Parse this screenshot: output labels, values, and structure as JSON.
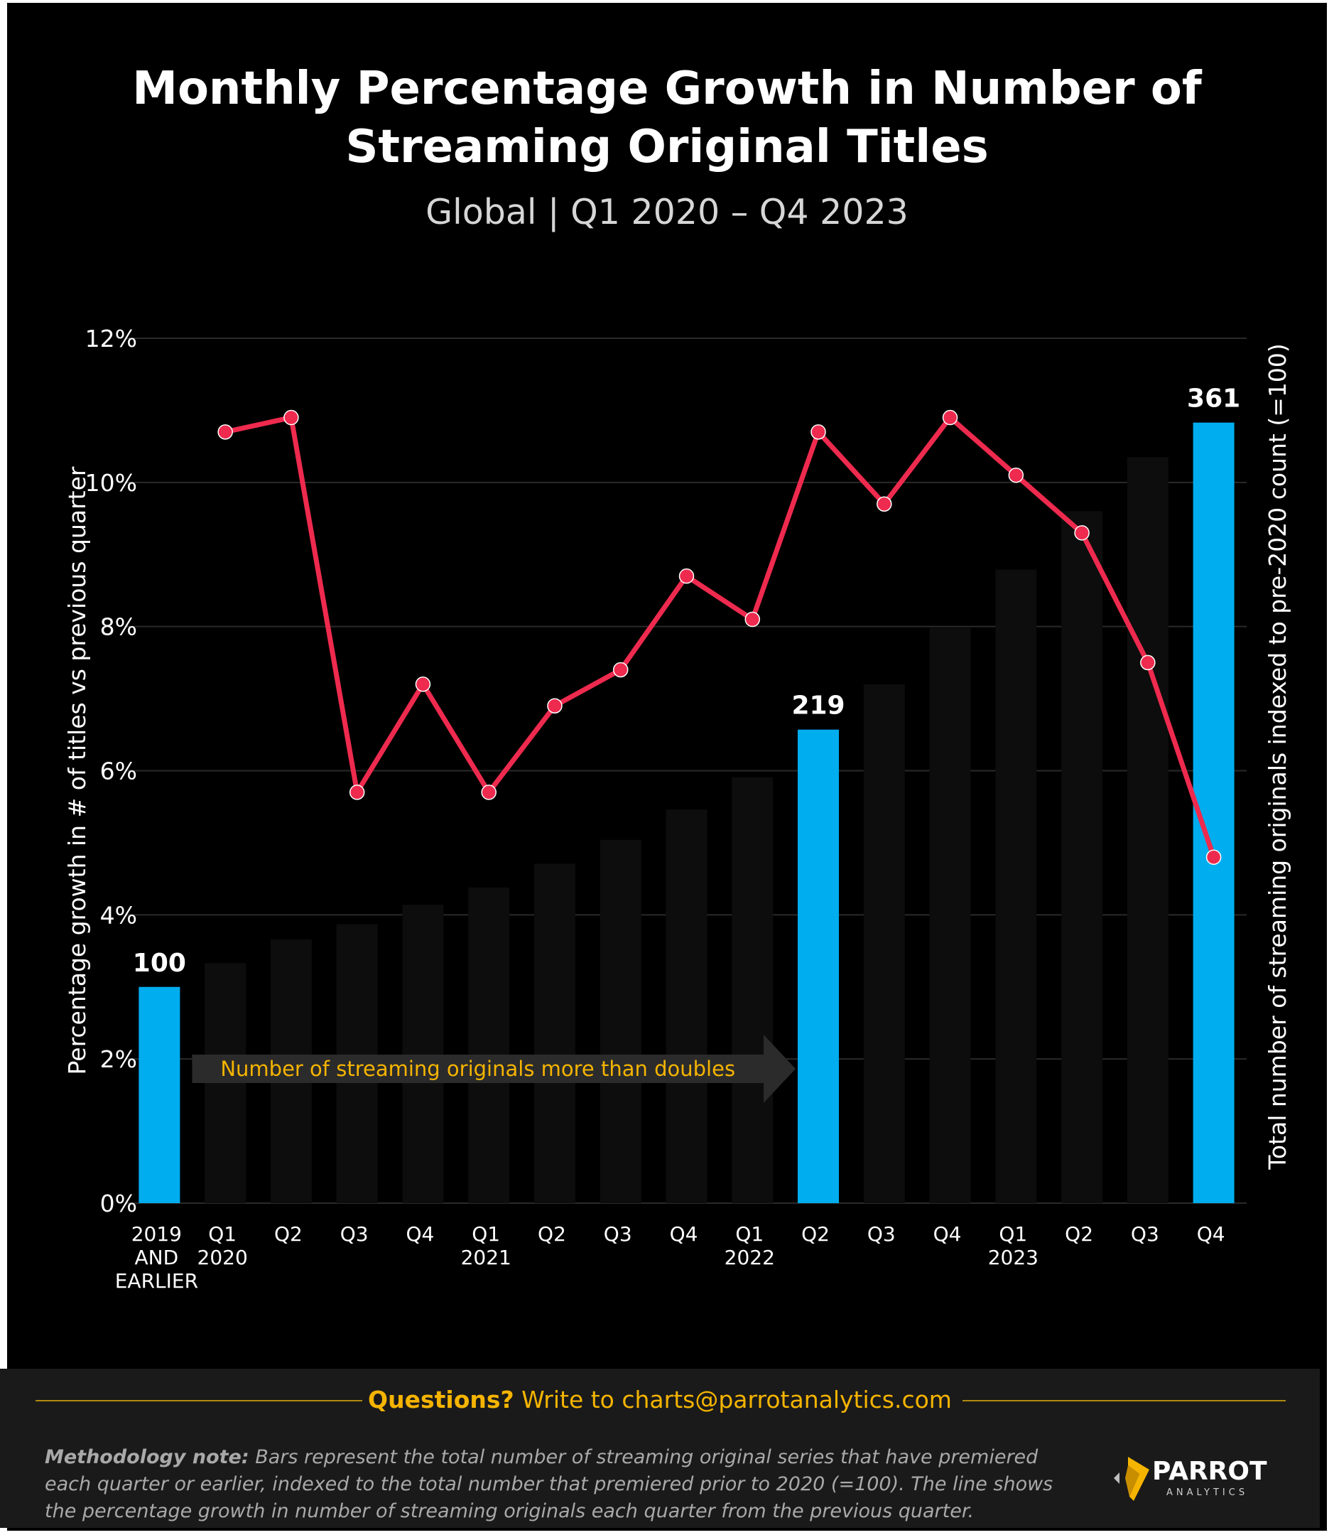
{
  "title": "Monthly Percentage Growth in Number of Streaming Original Titles",
  "subtitle": "Global  |  Q1 2020 – Q4 2023",
  "chart_data": {
    "type": "bar",
    "title": "Monthly Percentage Growth in Number of Streaming Original Titles",
    "subtitle": "Global | Q1 2020 – Q4 2023",
    "categories": [
      "2019 AND EARLIER",
      "Q1 2020",
      "Q2",
      "Q3",
      "Q4",
      "Q1 2021",
      "Q2",
      "Q3",
      "Q4",
      "Q1 2022",
      "Q2",
      "Q3",
      "Q4",
      "Q1 2023",
      "Q2",
      "Q3",
      "Q4"
    ],
    "category_labels": [
      [
        "2019",
        "AND",
        "EARLIER"
      ],
      [
        "Q1",
        "2020"
      ],
      [
        "Q2"
      ],
      [
        "Q3"
      ],
      [
        "Q4"
      ],
      [
        "Q1",
        "2021"
      ],
      [
        "Q2"
      ],
      [
        "Q3"
      ],
      [
        "Q4"
      ],
      [
        "Q1",
        "2022"
      ],
      [
        "Q2"
      ],
      [
        "Q3"
      ],
      [
        "Q4"
      ],
      [
        "Q1",
        "2023"
      ],
      [
        "Q2"
      ],
      [
        "Q3"
      ],
      [
        "Q4"
      ]
    ],
    "series": [
      {
        "type": "bar",
        "axis": "right",
        "values": [
          100,
          111,
          122,
          129,
          138,
          146,
          157,
          168,
          182,
          197,
          219,
          240,
          266,
          293,
          320,
          345,
          361
        ],
        "highlighted_indices": [
          0,
          10,
          16
        ],
        "data_labels": {
          "0": "100",
          "10": "219",
          "16": "361"
        }
      },
      {
        "type": "line",
        "axis": "left",
        "values": [
          null,
          10.7,
          10.9,
          5.7,
          7.2,
          5.7,
          6.9,
          7.4,
          8.7,
          8.1,
          10.7,
          9.7,
          10.9,
          10.1,
          9.3,
          7.5,
          4.8
        ]
      }
    ],
    "ylabel": "Percentage growth in # of titles vs previous quarter",
    "ylim": [
      0,
      12
    ],
    "yticks": [
      "0%",
      "2%",
      "4%",
      "6%",
      "8%",
      "10%",
      "12%"
    ],
    "y2label": "Total number of streaming originals indexed to pre-2020 count (=100)",
    "y2lim": [
      0,
      400
    ],
    "annotation": "Number of streaming originals more than doubles",
    "grid": true,
    "colors": {
      "background": "#000000",
      "bar": "#0d0d0d",
      "highlight_bar": "#00adef",
      "line": "#ee2a4e",
      "annotation": "#f5b400",
      "gridline": "#2a2a2a"
    }
  },
  "footer": {
    "questions_bold": "Questions?",
    "questions_text": " Write to charts@parrotanalytics.com",
    "methodology_bold": "Methodology note:",
    "methodology_text": " Bars represent the total number of streaming original series that have premiered each quarter or earlier, indexed to the total number that premiered prior to 2020 (=100).  The line shows the percentage growth in number of streaming originals each quarter from the previous quarter.",
    "logo_name": "PARROT",
    "logo_sub": "ANALYTICS"
  }
}
